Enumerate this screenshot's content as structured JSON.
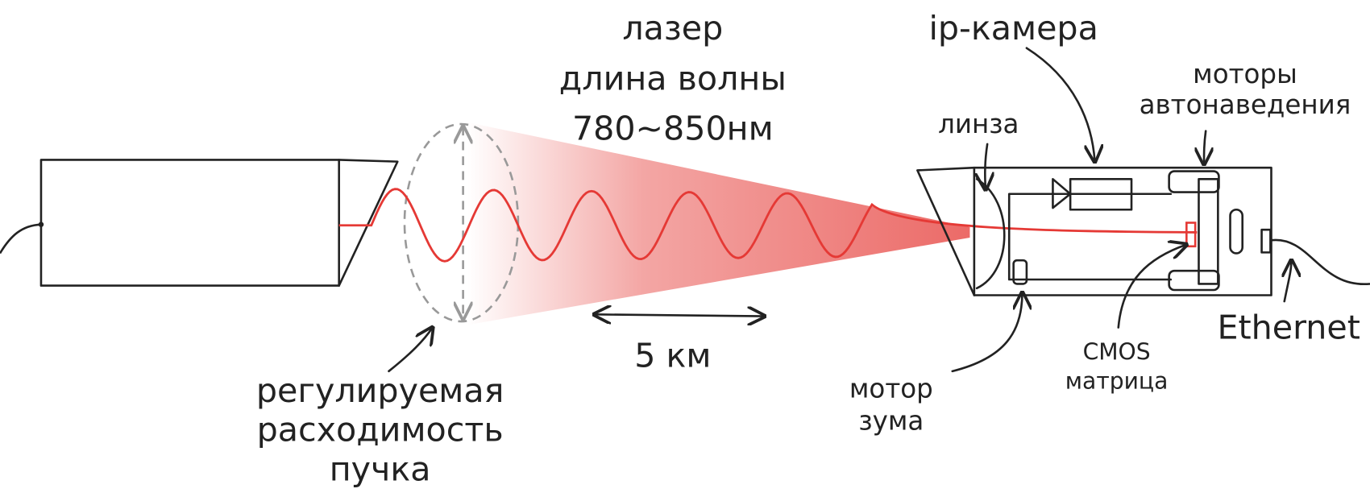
{
  "laser": {
    "lines": [
      "лазер",
      "длина волны",
      "780~850нм"
    ]
  },
  "camera": {
    "title": "ip-камера"
  },
  "autofocus_motors": {
    "lines": [
      "моторы",
      "автонаведения"
    ]
  },
  "lens": {
    "label": "линза"
  },
  "divergence": {
    "lines": [
      "регулируемая",
      "расходимость",
      "пучка"
    ]
  },
  "distance": {
    "label": "5 км"
  },
  "zoom_motor": {
    "lines": [
      "мотор",
      "зума"
    ]
  },
  "cmos": {
    "lines": [
      "CMOS",
      "матрица"
    ]
  },
  "ethernet": {
    "label": "Ethernet"
  }
}
